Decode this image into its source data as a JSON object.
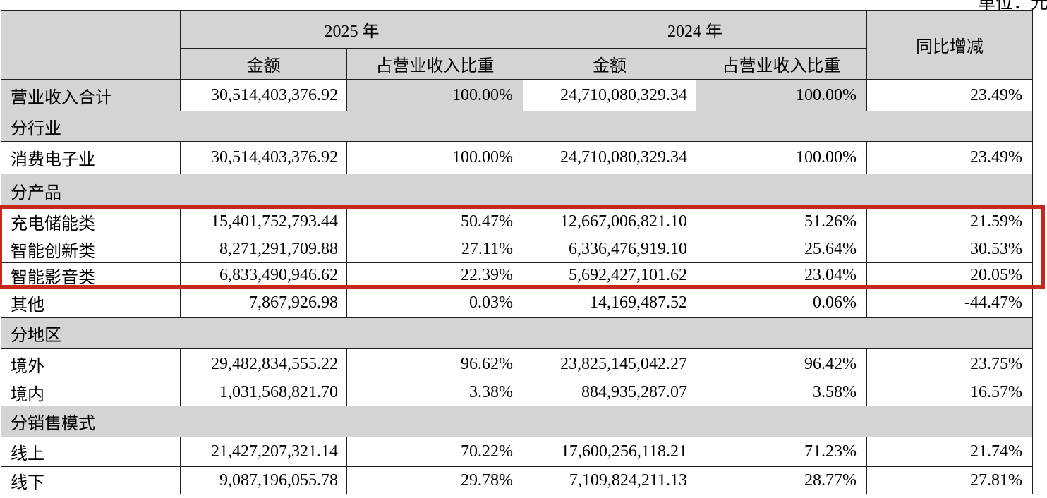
{
  "meta": {
    "unit_note": "单位：元"
  },
  "colors": {
    "header_fill": "#d4d4d4",
    "highlight_border": "#c6281b",
    "grid_line": "#1e1e1e"
  },
  "table": {
    "header": {
      "corner": "",
      "year_2025": "2025 年",
      "year_2024": "2024 年",
      "amount": "金额",
      "share": "占营业收入比重",
      "yoy": "同比增减"
    },
    "rows": [
      {
        "type": "data",
        "label": "营业收入合计",
        "amount_2025": "30,514,403,376.92",
        "share_2025": "100.00%",
        "amount_2024": "24,710,080,329.34",
        "share_2024": "100.00%",
        "yoy": "23.49%",
        "shade_label_pct": true
      },
      {
        "type": "section",
        "label": "分行业"
      },
      {
        "type": "data",
        "label": "消费电子业",
        "amount_2025": "30,514,403,376.92",
        "share_2025": "100.00%",
        "amount_2024": "24,710,080,329.34",
        "share_2024": "100.00%",
        "yoy": "23.49%"
      },
      {
        "type": "section",
        "label": "分产品"
      },
      {
        "type": "data",
        "label": "充电储能类",
        "amount_2025": "15,401,752,793.44",
        "share_2025": "50.47%",
        "amount_2024": "12,667,006,821.10",
        "share_2024": "51.26%",
        "yoy": "21.59%",
        "highlighted": true
      },
      {
        "type": "data",
        "label": "智能创新类",
        "amount_2025": "8,271,291,709.88",
        "share_2025": "27.11%",
        "amount_2024": "6,336,476,919.10",
        "share_2024": "25.64%",
        "yoy": "30.53%",
        "highlighted": true
      },
      {
        "type": "data",
        "label": "智能影音类",
        "amount_2025": "6,833,490,946.62",
        "share_2025": "22.39%",
        "amount_2024": "5,692,427,101.62",
        "share_2024": "23.04%",
        "yoy": "20.05%",
        "highlighted": true
      },
      {
        "type": "data",
        "label": "其他",
        "amount_2025": "7,867,926.98",
        "share_2025": "0.03%",
        "amount_2024": "14,169,487.52",
        "share_2024": "0.06%",
        "yoy": "-44.47%"
      },
      {
        "type": "section",
        "label": "分地区"
      },
      {
        "type": "data",
        "label": "境外",
        "amount_2025": "29,482,834,555.22",
        "share_2025": "96.62%",
        "amount_2024": "23,825,145,042.27",
        "share_2024": "96.42%",
        "yoy": "23.75%"
      },
      {
        "type": "data",
        "label": "境内",
        "amount_2025": "1,031,568,821.70",
        "share_2025": "3.38%",
        "amount_2024": "884,935,287.07",
        "share_2024": "3.58%",
        "yoy": "16.57%"
      },
      {
        "type": "section",
        "label": "分销售模式"
      },
      {
        "type": "data",
        "label": "线上",
        "amount_2025": "21,427,207,321.14",
        "share_2025": "70.22%",
        "amount_2024": "17,600,256,118.21",
        "share_2024": "71.23%",
        "yoy": "21.74%"
      },
      {
        "type": "data",
        "label": "线下",
        "amount_2025": "9,087,196,055.78",
        "share_2025": "29.78%",
        "amount_2024": "7,109,824,211.13",
        "share_2024": "28.77%",
        "yoy": "27.81%"
      }
    ]
  }
}
